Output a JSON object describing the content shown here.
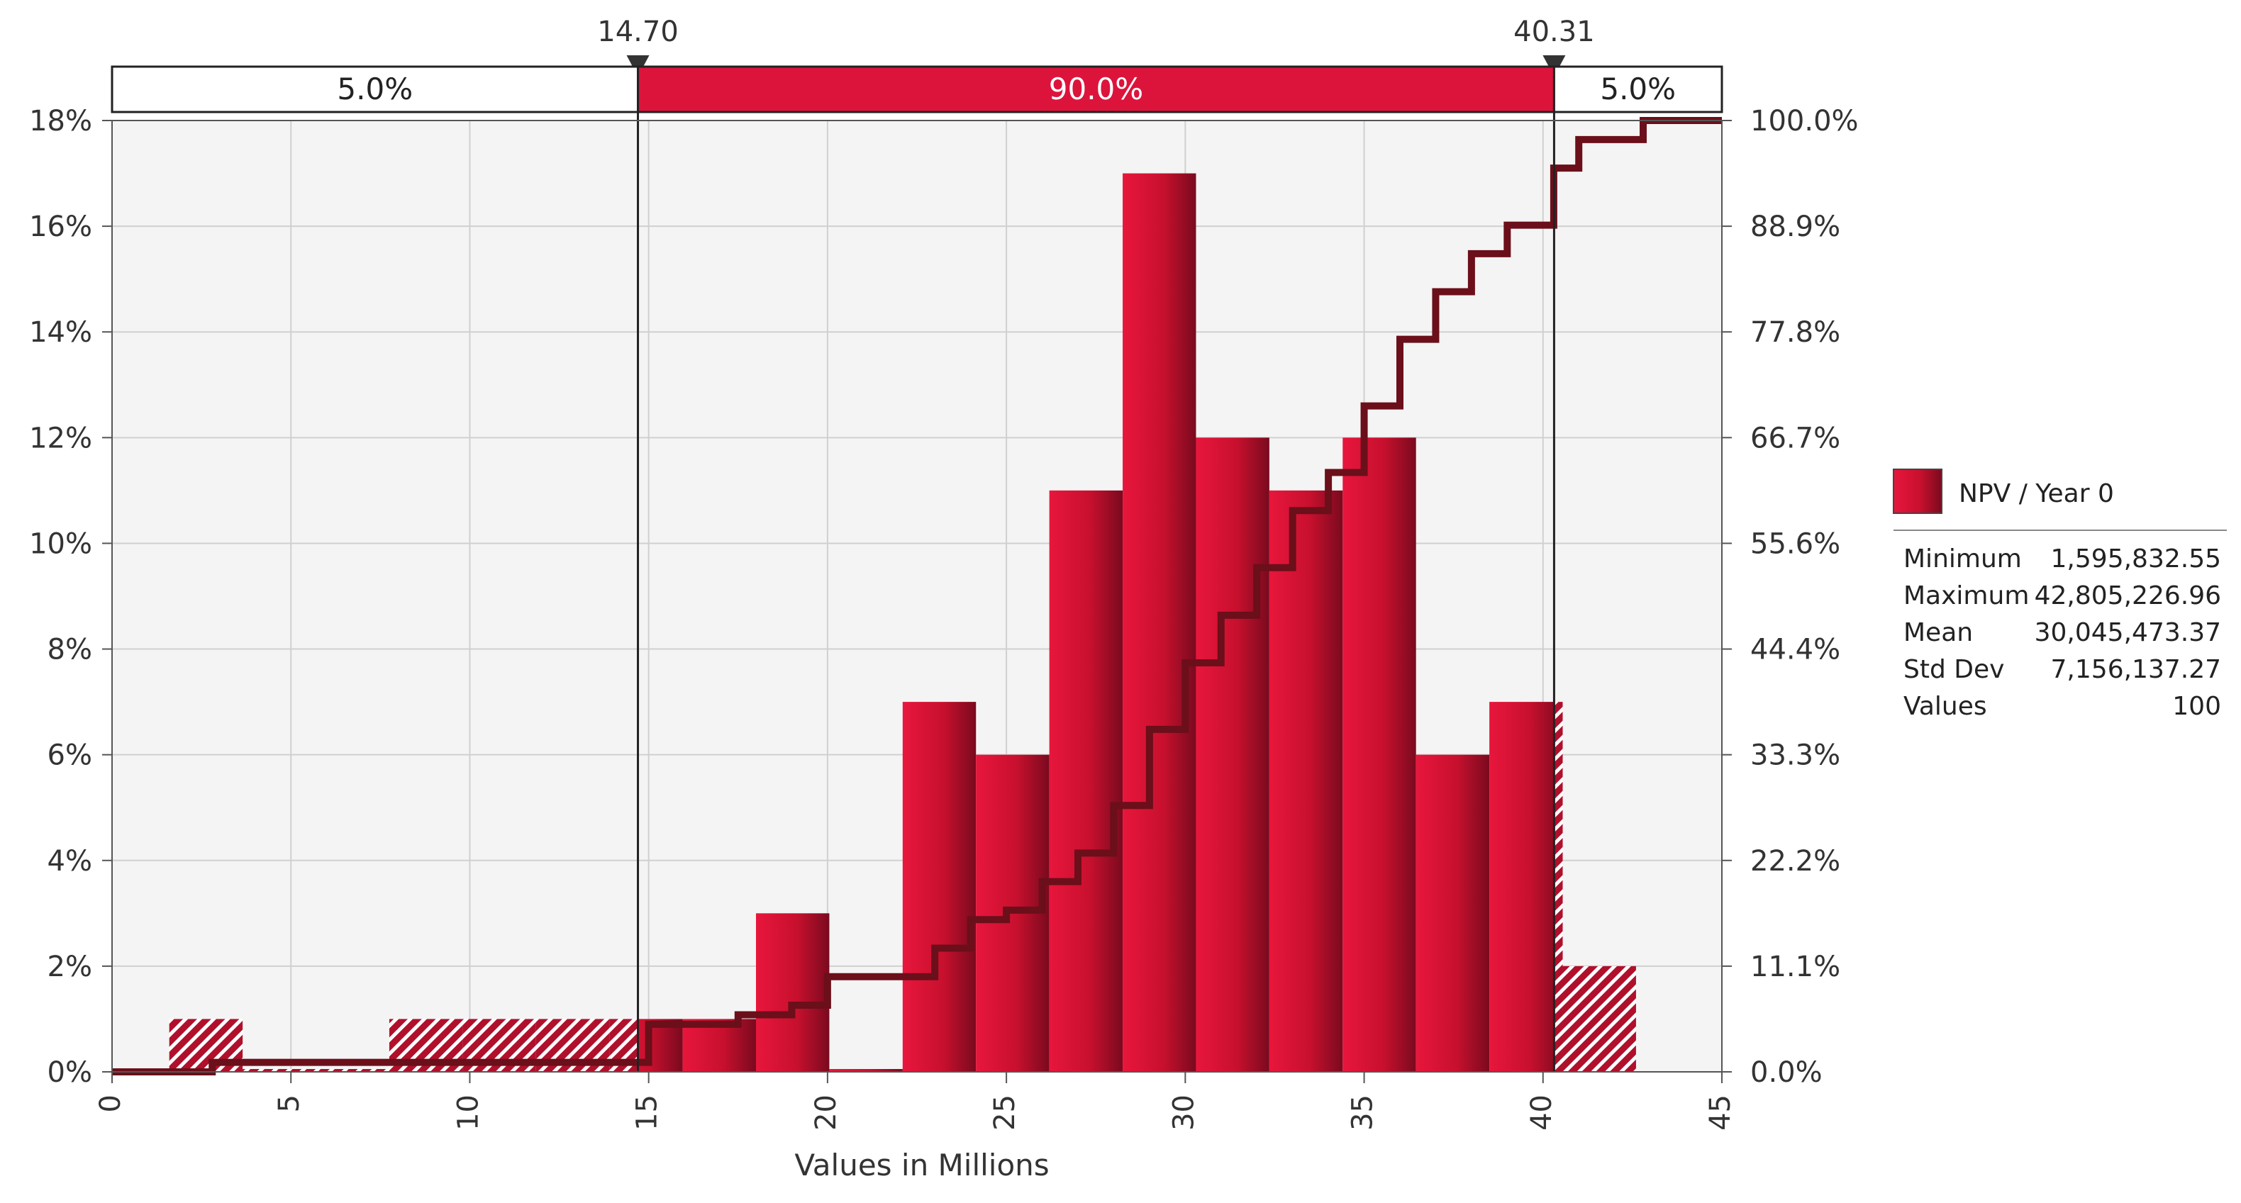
{
  "chart_data": {
    "type": "bar",
    "xlabel": "Values in Millions",
    "xlim": [
      0,
      45
    ],
    "x_ticks": [
      "0",
      "5",
      "10",
      "15",
      "20",
      "25",
      "30",
      "35",
      "40",
      "45"
    ],
    "ylim": [
      0,
      18
    ],
    "y_ticks_left": [
      "0%",
      "2%",
      "4%",
      "6%",
      "8%",
      "10%",
      "12%",
      "14%",
      "16%",
      "18%"
    ],
    "y_ticks_right": [
      "0.0%",
      "11.1%",
      "22.2%",
      "33.3%",
      "44.4%",
      "55.6%",
      "66.7%",
      "77.8%",
      "88.9%",
      "100.0%"
    ],
    "grid": true,
    "bins": [
      {
        "x0": 0.0,
        "x1": 1.6,
        "value": 0
      },
      {
        "x0": 1.6,
        "x1": 3.65,
        "value": 1
      },
      {
        "x0": 3.65,
        "x1": 5.7,
        "value": 0
      },
      {
        "x0": 5.7,
        "x1": 7.75,
        "value": 0
      },
      {
        "x0": 7.75,
        "x1": 9.8,
        "value": 1
      },
      {
        "x0": 9.8,
        "x1": 11.85,
        "value": 1
      },
      {
        "x0": 11.85,
        "x1": 13.9,
        "value": 1
      },
      {
        "x0": 13.9,
        "x1": 15.95,
        "value": 1
      },
      {
        "x0": 15.95,
        "x1": 18.0,
        "value": 1
      },
      {
        "x0": 18.0,
        "x1": 20.05,
        "value": 3
      },
      {
        "x0": 20.05,
        "x1": 22.1,
        "value": 0
      },
      {
        "x0": 22.1,
        "x1": 24.15,
        "value": 7
      },
      {
        "x0": 24.15,
        "x1": 26.2,
        "value": 6
      },
      {
        "x0": 26.2,
        "x1": 28.25,
        "value": 11
      },
      {
        "x0": 28.25,
        "x1": 30.3,
        "value": 17
      },
      {
        "x0": 30.3,
        "x1": 32.35,
        "value": 12
      },
      {
        "x0": 32.35,
        "x1": 34.4,
        "value": 11
      },
      {
        "x0": 34.4,
        "x1": 36.45,
        "value": 12
      },
      {
        "x0": 36.45,
        "x1": 38.5,
        "value": 6
      },
      {
        "x0": 38.5,
        "x1": 40.55,
        "value": 7
      },
      {
        "x0": 40.55,
        "x1": 42.6,
        "value": 2
      }
    ],
    "cumulative": [
      [
        0,
        0
      ],
      [
        1.6,
        0
      ],
      [
        2.8,
        1
      ],
      [
        15,
        5
      ],
      [
        17.5,
        6
      ],
      [
        19,
        7
      ],
      [
        20,
        10
      ],
      [
        22.2,
        10
      ],
      [
        23,
        13
      ],
      [
        24,
        16
      ],
      [
        25,
        17
      ],
      [
        26,
        20
      ],
      [
        27,
        23
      ],
      [
        28,
        28
      ],
      [
        29,
        36
      ],
      [
        30,
        43
      ],
      [
        31,
        48
      ],
      [
        32,
        53
      ],
      [
        33,
        59
      ],
      [
        34,
        63
      ],
      [
        35,
        70
      ],
      [
        36,
        77
      ],
      [
        37,
        82
      ],
      [
        38,
        86
      ],
      [
        39,
        89
      ],
      [
        40.3,
        95
      ],
      [
        41,
        98
      ],
      [
        42.8,
        100
      ],
      [
        45,
        100
      ]
    ],
    "markers": [
      {
        "label": "14.70",
        "value": 14.7
      },
      {
        "label": "40.31",
        "value": 40.31
      }
    ],
    "bands": [
      {
        "label": "5.0%",
        "from": 0,
        "to": 14.7
      },
      {
        "label": "90.0%",
        "from": 14.7,
        "to": 40.31
      },
      {
        "label": "5.0%",
        "from": 40.31,
        "to": 45
      }
    ],
    "legend": {
      "series": "NPV / Year 0",
      "position": "right",
      "stats": [
        {
          "name": "Minimum",
          "value": "1,595,832.55"
        },
        {
          "name": "Maximum",
          "value": "42,805,226.96"
        },
        {
          "name": "Mean",
          "value": "30,045,473.37"
        },
        {
          "name": "Std Dev",
          "value": "7,156,137.27"
        },
        {
          "name": "Values",
          "value": "100"
        }
      ]
    },
    "colors": {
      "bar": "#c8102e",
      "bar_light": "#e8163c",
      "bar_dark": "#7a0a1e",
      "cumulative": "#6b0f1a",
      "band_middle": "#dc143c",
      "plot_bg": "#f4f4f4",
      "grid": "#d0d0d0"
    }
  }
}
